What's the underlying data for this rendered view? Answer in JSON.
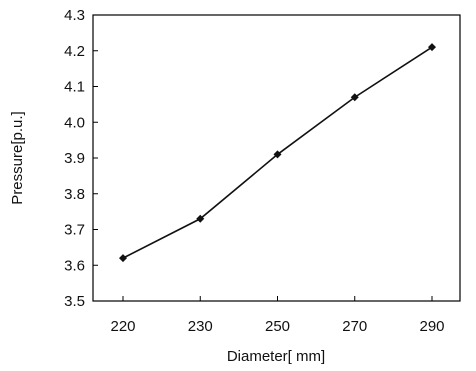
{
  "chart_data": {
    "type": "line",
    "title": "",
    "xlabel": "Diameter[ mm]",
    "ylabel": "Pressure[p.u.]",
    "categories": [
      "220",
      "230",
      "250",
      "270",
      "290"
    ],
    "series": [
      {
        "values": [
          3.62,
          3.73,
          3.91,
          4.07,
          4.21
        ]
      }
    ],
    "ylim": [
      3.5,
      4.3
    ],
    "yticks": [
      "3.5",
      "3.6",
      "3.7",
      "3.8",
      "3.9",
      "4.0",
      "4.1",
      "4.2",
      "4.3"
    ],
    "grid": false,
    "legend": "none",
    "colors": {
      "line": "#111111",
      "marker": "#111111",
      "axis": "#000000"
    }
  }
}
